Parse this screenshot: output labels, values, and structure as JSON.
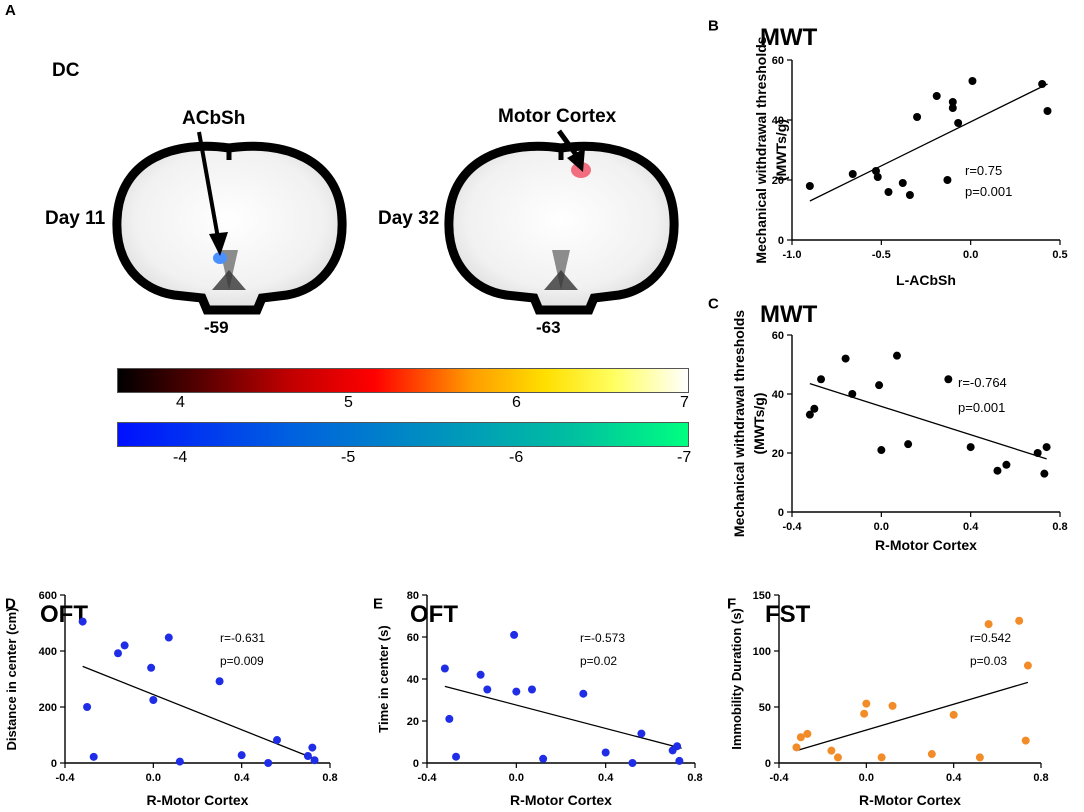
{
  "panel_a": {
    "letter": "A",
    "group": "DC",
    "left": {
      "region": "ACbSh",
      "day": "Day 11",
      "coord": "-59"
    },
    "right": {
      "region": "Motor Cortex",
      "day": "Day 32",
      "coord": "-63"
    },
    "colorbar_pos": {
      "ticks": [
        "4",
        "5",
        "6",
        "7"
      ],
      "colors": [
        "#000000",
        "#ff0000",
        "#ffff00",
        "#ffffff"
      ]
    },
    "colorbar_neg": {
      "ticks": [
        "-4",
        "-5",
        "-6",
        "-7"
      ],
      "colors": [
        "#0000ff",
        "#00ff80"
      ]
    },
    "left_blob_color": "#4a90ff",
    "right_blob_color": "#f26d7d"
  },
  "chart_data": [
    {
      "id": "B",
      "letter": "B",
      "type": "scatter",
      "title": "MWT",
      "xlabel": "L-ACbSh",
      "ylabel": "Mechanical withdrawal thresholds",
      "ylabel2": "(MWTs/g)",
      "xlim": [
        -1.0,
        0.5
      ],
      "ylim": [
        0,
        60
      ],
      "xticks": [
        -1.0,
        -0.5,
        0.0,
        0.5
      ],
      "xtick_labels": [
        "-1.0",
        "-0.5",
        "0.0",
        "0.5"
      ],
      "yticks": [
        0,
        20,
        40,
        60
      ],
      "ytick_labels": [
        "0",
        "20",
        "40",
        "60"
      ],
      "point_color": "#000000",
      "x": [
        -0.9,
        -0.66,
        -0.53,
        -0.52,
        -0.46,
        -0.38,
        -0.34,
        -0.3,
        -0.19,
        -0.13,
        -0.1,
        -0.1,
        -0.07,
        0.01,
        0.4,
        0.43
      ],
      "y": [
        18,
        22,
        23,
        21,
        16,
        19,
        15,
        41,
        48,
        20,
        44,
        46,
        39,
        53,
        52,
        43
      ],
      "fit": {
        "x": [
          -0.9,
          0.43
        ],
        "y": [
          13,
          52
        ]
      },
      "r_text": "r=0.75",
      "p_text": "p=0.001",
      "serif": true
    },
    {
      "id": "C",
      "letter": "C",
      "type": "scatter",
      "title": "MWT",
      "xlabel": "R-Motor Cortex",
      "ylabel": "Mechanical withdrawal thresholds",
      "ylabel2": "(MWTs/g)",
      "xlim": [
        -0.4,
        0.8
      ],
      "ylim": [
        0,
        60
      ],
      "xticks": [
        -0.4,
        0.0,
        0.4,
        0.8
      ],
      "xtick_labels": [
        "-0.4",
        "0.0",
        "0.4",
        "0.8"
      ],
      "yticks": [
        0,
        20,
        40,
        60
      ],
      "ytick_labels": [
        "0",
        "20",
        "40",
        "60"
      ],
      "point_color": "#000000",
      "x": [
        -0.32,
        -0.3,
        -0.27,
        -0.16,
        -0.13,
        -0.01,
        0.0,
        0.07,
        0.12,
        0.3,
        0.4,
        0.52,
        0.56,
        0.7,
        0.73,
        0.74
      ],
      "y": [
        33,
        35,
        45,
        52,
        40,
        43,
        21,
        53,
        23,
        45,
        22,
        14,
        16,
        20,
        13,
        22
      ],
      "fit": {
        "x": [
          -0.32,
          0.74
        ],
        "y": [
          43.5,
          18
        ]
      },
      "r_text": "r=-0.764",
      "p_text": "p=0.001",
      "serif": true
    },
    {
      "id": "D",
      "letter": "D",
      "type": "scatter",
      "title": "OFT",
      "xlabel": "R-Motor Cortex",
      "ylabel": "Distance  in center (cm)",
      "xlim": [
        -0.4,
        0.8
      ],
      "ylim": [
        0,
        600
      ],
      "xticks": [
        -0.4,
        0.0,
        0.4,
        0.8
      ],
      "xtick_labels": [
        "-0.4",
        "0.0",
        "0.4",
        "0.8"
      ],
      "yticks": [
        0,
        200,
        400,
        600
      ],
      "ytick_labels": [
        "0",
        "200",
        "400",
        "600"
      ],
      "point_color": "#1f2ee6",
      "x": [
        -0.32,
        -0.3,
        -0.27,
        -0.16,
        -0.13,
        -0.01,
        0.0,
        0.07,
        0.12,
        0.3,
        0.4,
        0.52,
        0.56,
        0.7,
        0.72,
        0.73
      ],
      "y": [
        505,
        200,
        22,
        392,
        420,
        340,
        225,
        448,
        5,
        292,
        28,
        0,
        82,
        25,
        55,
        10
      ],
      "fit": {
        "x": [
          -0.32,
          0.74
        ],
        "y": [
          345,
          12
        ]
      },
      "r_text": "r=-0.631",
      "p_text": "p=0.009",
      "serif": false
    },
    {
      "id": "E",
      "letter": "E",
      "type": "scatter",
      "title": "OFT",
      "xlabel": "R-Motor Cortex",
      "ylabel": "Time  in center (s)",
      "xlim": [
        -0.4,
        0.8
      ],
      "ylim": [
        0,
        80
      ],
      "xticks": [
        -0.4,
        0.0,
        0.4,
        0.8
      ],
      "xtick_labels": [
        "-0.4",
        "0.0",
        "0.4",
        "0.8"
      ],
      "yticks": [
        0,
        20,
        40,
        60,
        80
      ],
      "ytick_labels": [
        "0",
        "20",
        "40",
        "60",
        "80"
      ],
      "point_color": "#1f2ee6",
      "x": [
        -0.32,
        -0.3,
        -0.27,
        -0.16,
        -0.13,
        -0.01,
        0.0,
        0.07,
        0.12,
        0.3,
        0.4,
        0.52,
        0.56,
        0.7,
        0.72,
        0.73
      ],
      "y": [
        45,
        21,
        3,
        42,
        35,
        61,
        34,
        35,
        2,
        33,
        5,
        0,
        14,
        6,
        8,
        1
      ],
      "fit": {
        "x": [
          -0.32,
          0.74
        ],
        "y": [
          36.5,
          7
        ]
      },
      "r_text": "r=-0.573",
      "p_text": "p=0.02",
      "serif": false
    },
    {
      "id": "F",
      "letter": "F",
      "type": "scatter",
      "title": "FST",
      "xlabel": "R-Motor Cortex",
      "ylabel": "Immobility Duration  (s)",
      "xlim": [
        -0.4,
        0.8
      ],
      "ylim": [
        0,
        150
      ],
      "xticks": [
        -0.4,
        0.0,
        0.4,
        0.8
      ],
      "xtick_labels": [
        "-0.4",
        "0.0",
        "0.4",
        "0.8"
      ],
      "yticks": [
        0,
        50,
        100,
        150
      ],
      "ytick_labels": [
        "0",
        "50",
        "100",
        "150"
      ],
      "point_color": "#f28c28",
      "x": [
        -0.32,
        -0.3,
        -0.27,
        -0.16,
        -0.13,
        -0.01,
        0.0,
        0.07,
        0.12,
        0.3,
        0.4,
        0.52,
        0.56,
        0.7,
        0.73,
        0.74
      ],
      "y": [
        14,
        23,
        26,
        11,
        5,
        44,
        53,
        5,
        51,
        8,
        43,
        5,
        124,
        127,
        20,
        87
      ],
      "fit": {
        "x": [
          -0.32,
          0.74
        ],
        "y": [
          11,
          72
        ]
      },
      "r_text": "r=0.542",
      "p_text": "p=0.03",
      "serif": false
    }
  ]
}
